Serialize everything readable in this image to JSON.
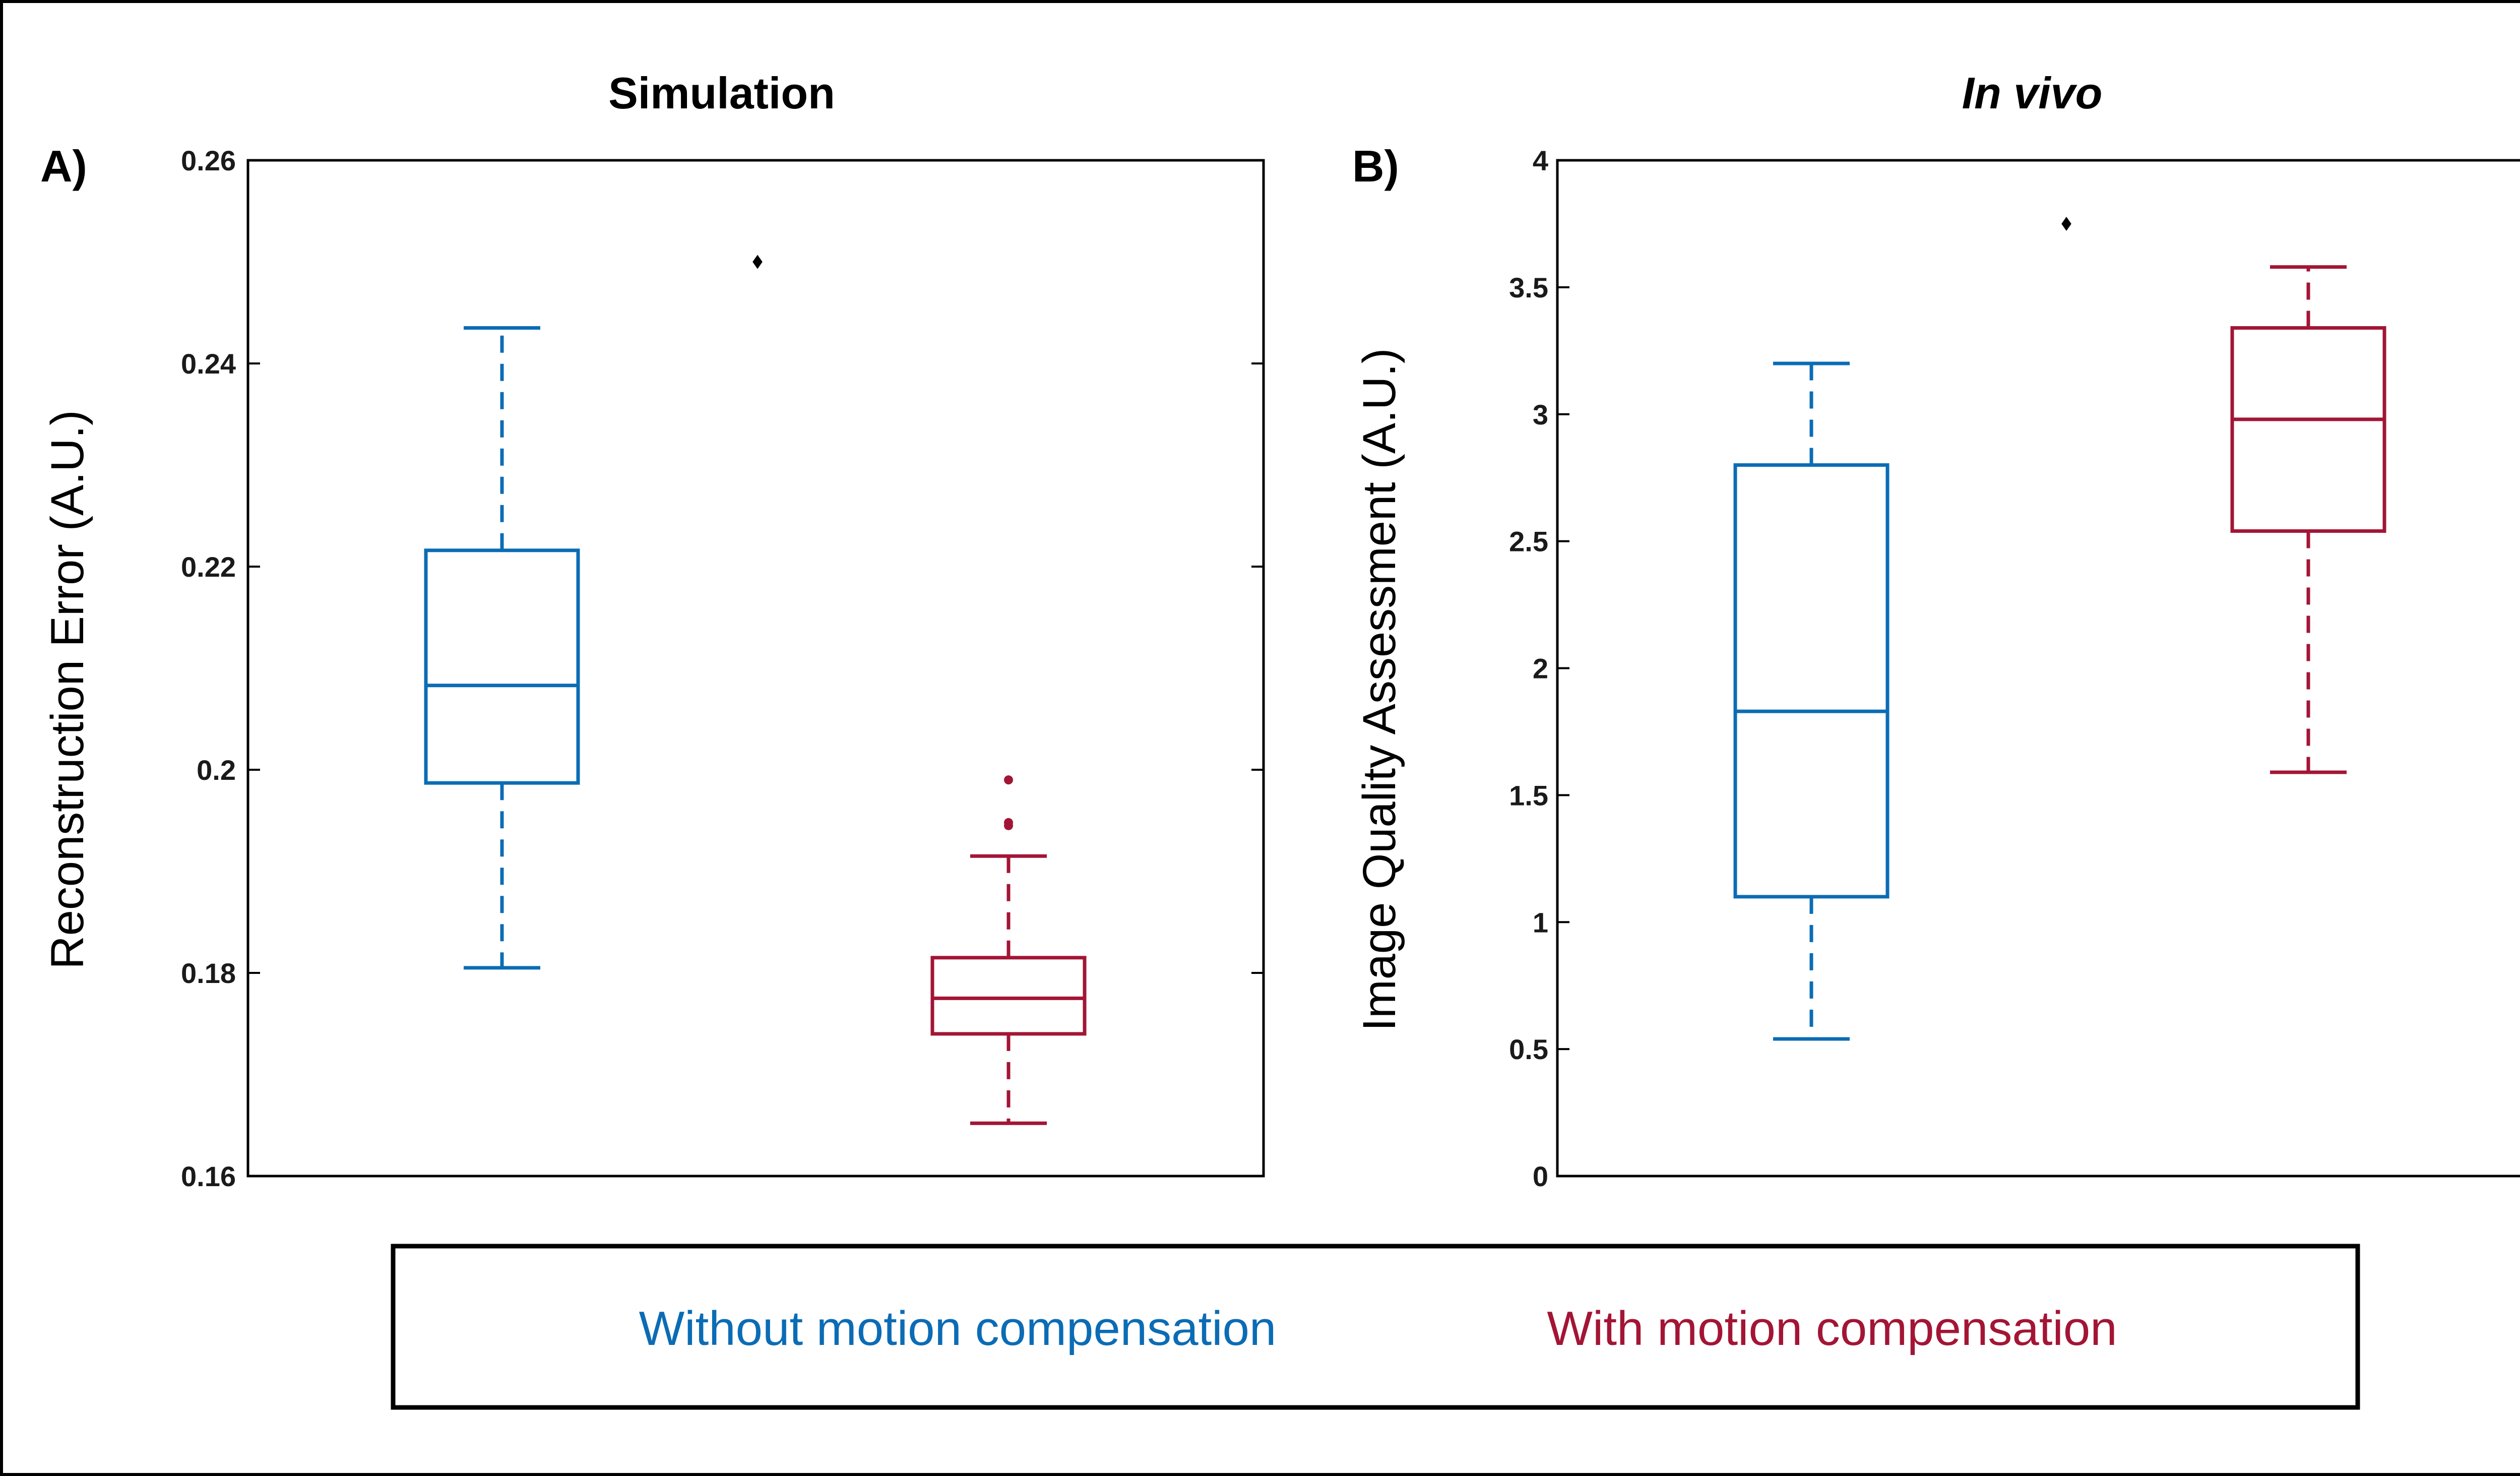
{
  "legend": {
    "items": [
      {
        "label": "Without motion compensation",
        "color": "#0b6cb5"
      },
      {
        "label": "With motion compensation",
        "color": "#a31535"
      }
    ]
  },
  "chart_data": [
    {
      "type": "box",
      "panel_letter": "A)",
      "title": "Simulation",
      "title_style": "bold",
      "xlabel": "",
      "ylabel": "Reconstruction Error (A.U.)",
      "ylim": [
        0.16,
        0.26
      ],
      "yticks": [
        0.16,
        0.18,
        0.2,
        0.22,
        0.24,
        0.26
      ],
      "ytick_labels": [
        "0.16",
        "0.18",
        "0.2",
        "0.22",
        "0.24",
        "0.26"
      ],
      "significance_marker": {
        "symbol": "♦",
        "y": 0.25
      },
      "series": [
        {
          "name": "Without motion compensation",
          "color": "#0b6cb5",
          "whisker_low": 0.1805,
          "q1": 0.1987,
          "median": 0.2083,
          "q3": 0.2216,
          "whisker_high": 0.2435,
          "outliers": []
        },
        {
          "name": "With motion compensation",
          "color": "#a31535",
          "whisker_low": 0.1652,
          "q1": 0.174,
          "median": 0.1775,
          "q3": 0.1815,
          "whisker_high": 0.1915,
          "outliers": [
            0.1945,
            0.1948,
            0.199
          ]
        }
      ]
    },
    {
      "type": "box",
      "panel_letter": "B)",
      "title": "In vivo",
      "title_style": "bold-italic",
      "xlabel": "",
      "ylabel": "Image Quality Assessment (A.U.)",
      "ylim": [
        0,
        4
      ],
      "yticks": [
        0,
        0.5,
        1,
        1.5,
        2,
        2.5,
        3,
        3.5,
        4
      ],
      "ytick_labels": [
        "0",
        "0.5",
        "1",
        "1.5",
        "2",
        "2.5",
        "3",
        "3.5",
        "4"
      ],
      "significance_marker": {
        "symbol": "♦",
        "y": 3.75
      },
      "series": [
        {
          "name": "Without motion compensation",
          "color": "#0b6cb5",
          "whisker_low": 0.54,
          "q1": 1.1,
          "median": 1.83,
          "q3": 2.8,
          "whisker_high": 3.2,
          "outliers": []
        },
        {
          "name": "With motion compensation",
          "color": "#a31535",
          "whisker_low": 1.59,
          "q1": 2.54,
          "median": 2.98,
          "q3": 3.34,
          "whisker_high": 3.58,
          "outliers": []
        }
      ]
    }
  ]
}
